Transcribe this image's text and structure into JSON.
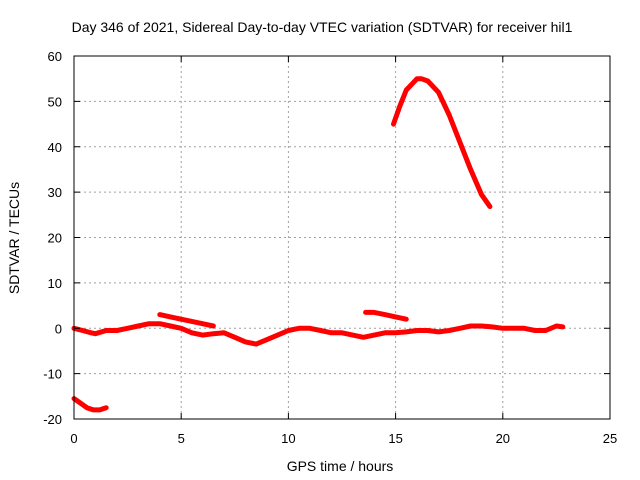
{
  "chart_data": {
    "type": "line",
    "title": "Day 346 of 2021, Sidereal Day-to-day VTEC variation (SDTVAR) for receiver hil1",
    "xlabel": "GPS time / hours",
    "ylabel": "SDTVAR / TECUs",
    "xlim": [
      0,
      25
    ],
    "ylim": [
      -20,
      60
    ],
    "xticks": [
      0,
      5,
      10,
      15,
      20,
      25
    ],
    "yticks": [
      -20,
      -10,
      0,
      10,
      20,
      30,
      40,
      50,
      60
    ],
    "grid": true,
    "series_color": "#ff0000",
    "series": [
      {
        "name": "segment-1",
        "x": [
          0.0,
          0.3,
          0.6,
          0.9,
          1.2,
          1.5
        ],
        "y": [
          -15.5,
          -16.5,
          -17.5,
          -18.0,
          -18.0,
          -17.5
        ]
      },
      {
        "name": "segment-2",
        "x": [
          0.0,
          0.4,
          0.8,
          1.0,
          1.5,
          2.0,
          2.5,
          3.0,
          3.5,
          4.0,
          4.5,
          5.0,
          5.5,
          6.0,
          6.5,
          7.0,
          7.5,
          8.0,
          8.5,
          9.0,
          9.5,
          10.0,
          10.5,
          11.0,
          11.5,
          12.0,
          12.5,
          13.0,
          13.5,
          14.0,
          14.5,
          15.0,
          15.5,
          16.0,
          16.5,
          17.0,
          17.5,
          18.0,
          18.5,
          19.0,
          19.5,
          20.0,
          20.5,
          21.0,
          21.5,
          22.0,
          22.5,
          22.8
        ],
        "y": [
          0.0,
          -0.5,
          -1.0,
          -1.2,
          -0.5,
          -0.5,
          0.0,
          0.5,
          1.0,
          1.0,
          0.5,
          0.0,
          -1.0,
          -1.5,
          -1.2,
          -1.0,
          -2.0,
          -3.0,
          -3.5,
          -2.5,
          -1.5,
          -0.5,
          0.0,
          0.0,
          -0.5,
          -1.0,
          -1.0,
          -1.5,
          -2.0,
          -1.5,
          -1.0,
          -1.0,
          -0.8,
          -0.5,
          -0.5,
          -0.8,
          -0.5,
          0.0,
          0.5,
          0.5,
          0.3,
          0.0,
          0.0,
          0.0,
          -0.5,
          -0.5,
          0.5,
          0.3
        ]
      },
      {
        "name": "segment-3",
        "x": [
          4.0,
          4.5,
          5.0,
          5.5,
          6.0,
          6.5
        ],
        "y": [
          3.0,
          2.5,
          2.0,
          1.5,
          1.0,
          0.5
        ]
      },
      {
        "name": "segment-4",
        "x": [
          13.6,
          14.0,
          14.5,
          15.0,
          15.5
        ],
        "y": [
          3.5,
          3.5,
          3.0,
          2.5,
          2.0
        ]
      },
      {
        "name": "segment-5",
        "x": [
          14.9,
          15.2,
          15.5,
          15.8,
          16.0,
          16.2,
          16.5,
          17.0,
          17.5,
          18.0,
          18.5,
          19.0,
          19.4
        ],
        "y": [
          45.0,
          49.0,
          52.5,
          54.0,
          55.0,
          55.0,
          54.5,
          52.0,
          47.0,
          41.0,
          35.0,
          29.5,
          26.8
        ]
      }
    ]
  }
}
